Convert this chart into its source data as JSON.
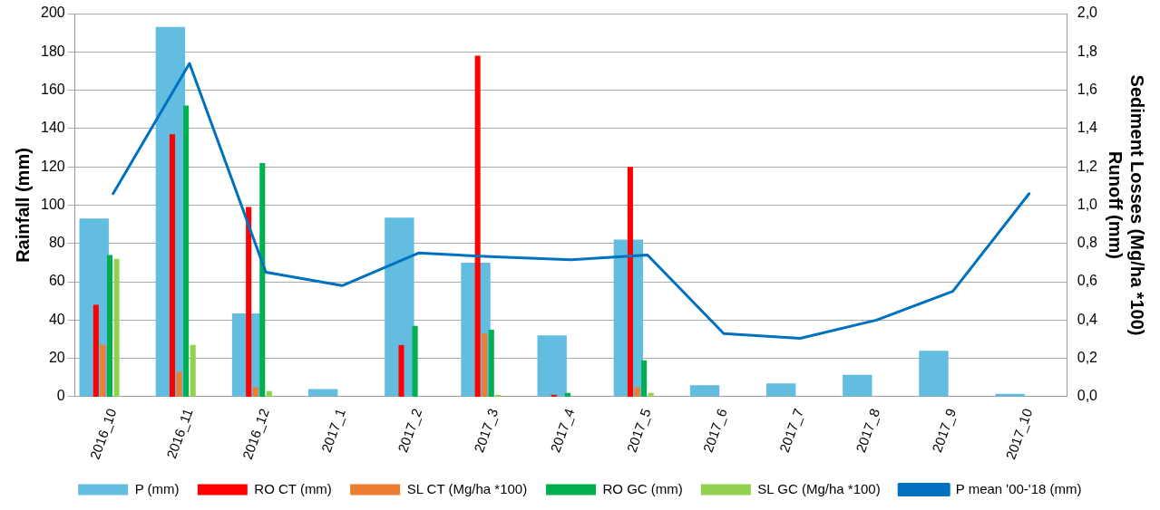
{
  "chart_data": {
    "type": "bar",
    "ylabel": "Rainfall (mm)",
    "y2label": "Sediment Losses (Mg/ha *100)\nRunoff (mm)",
    "categories": [
      "2016_10",
      "2016_11",
      "2016_12",
      "2017_1",
      "2017_2",
      "2017_3",
      "2017_4",
      "2017_5",
      "2017_6",
      "2017_7",
      "2017_8",
      "2017_9",
      "2017_10"
    ],
    "series": [
      {
        "name": "P (mm)",
        "color": "#63bde0",
        "values": [
          93,
          193,
          43.5,
          4,
          93.5,
          70,
          32,
          82,
          6,
          7,
          11.5,
          24,
          1.5
        ]
      },
      {
        "name": "RO CT (mm)",
        "color": "#ff0000",
        "axis": "y2",
        "values": [
          0.48,
          1.37,
          0.99,
          null,
          0.27,
          1.78,
          0.01,
          1.2,
          null,
          null,
          null,
          null,
          null
        ]
      },
      {
        "name": "SL CT (Mg/ha *100)",
        "color": "#ed7d31",
        "axis": "y2",
        "values": [
          0.27,
          0.13,
          0.05,
          null,
          null,
          0.33,
          null,
          0.05,
          null,
          null,
          null,
          null,
          null
        ]
      },
      {
        "name": "RO GC (mm)",
        "color": "#00b050",
        "axis": "y2",
        "values": [
          0.74,
          1.52,
          1.22,
          null,
          0.37,
          0.35,
          0.02,
          0.19,
          null,
          null,
          null,
          null,
          null
        ]
      },
      {
        "name": "SL GC (Mg/ha *100)",
        "color": "#92d050",
        "axis": "y2",
        "values": [
          0.72,
          0.27,
          0.03,
          null,
          null,
          0.01,
          null,
          0.02,
          null,
          null,
          null,
          null,
          null
        ]
      },
      {
        "name": "P mean '00-'18 (mm)",
        "type": "line",
        "color": "#0070c0",
        "values": [
          106,
          174,
          65,
          58,
          75,
          73,
          71.5,
          74,
          33,
          30.5,
          40,
          55,
          106
        ]
      }
    ],
    "ylim": [
      0,
      200
    ],
    "yticks": [
      0,
      20,
      40,
      60,
      80,
      100,
      120,
      140,
      160,
      180,
      200
    ],
    "y2lim": [
      0,
      2
    ],
    "y2ticks": [
      {
        "value": 0,
        "label": "0,0"
      },
      {
        "value": 0.2,
        "label": "0,2"
      },
      {
        "value": 0.4,
        "label": "0,4"
      },
      {
        "value": 0.6,
        "label": "0,6"
      },
      {
        "value": 0.8,
        "label": "0,8"
      },
      {
        "value": 1,
        "label": "1,0"
      },
      {
        "value": 1.2,
        "label": "1,2"
      },
      {
        "value": 1.4,
        "label": "1,4"
      },
      {
        "value": 1.6,
        "label": "1,6"
      },
      {
        "value": 1.8,
        "label": "1,8"
      },
      {
        "value": 2,
        "label": "2,0"
      }
    ],
    "grid": "y",
    "legend": "bottom",
    "marker": "none",
    "line_style": "solid"
  }
}
